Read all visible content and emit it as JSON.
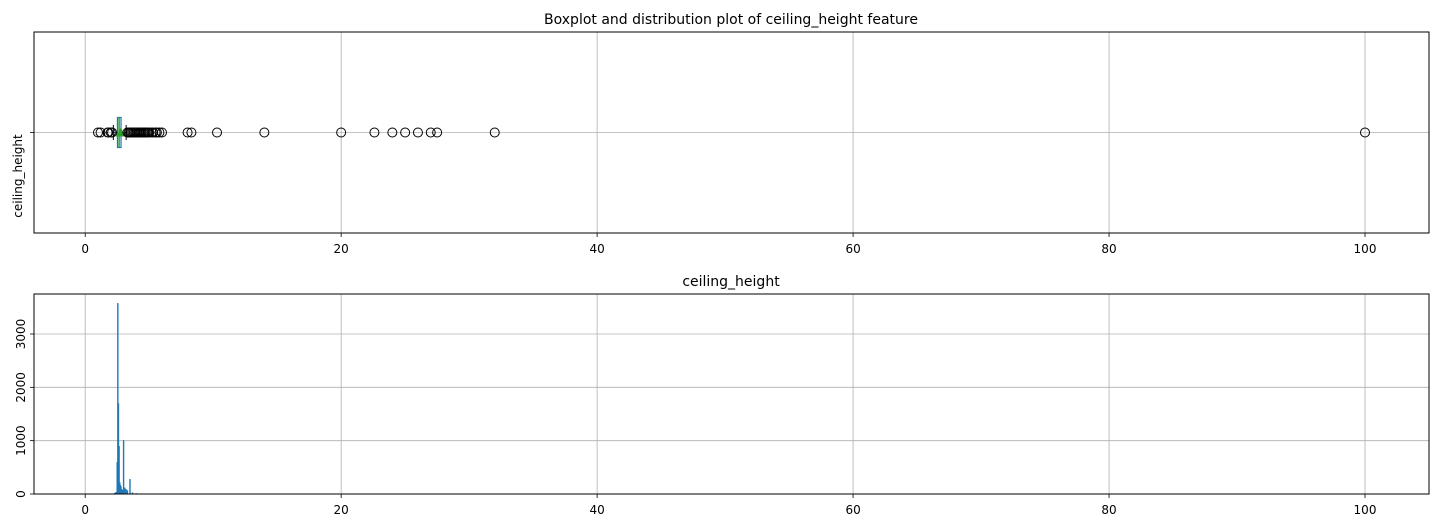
{
  "chart_data": [
    {
      "type": "boxplot",
      "title": "Boxplot and distribution plot of ceiling_height feature",
      "xlabel": "",
      "ylabel": "ceiling_height",
      "xlim": [
        -4,
        105
      ],
      "x_ticks": [
        0,
        20,
        40,
        60,
        80,
        100
      ],
      "grid": true,
      "box": {
        "q1": 2.52,
        "median": 2.65,
        "q3": 2.8,
        "mean": 2.77,
        "whisker_low": 2.2,
        "whisker_high": 3.2
      },
      "outliers": [
        1.0,
        1.2,
        1.75,
        1.8,
        2.0,
        2.1,
        3.3,
        3.4,
        3.5,
        3.6,
        3.7,
        3.8,
        3.9,
        4.0,
        4.1,
        4.2,
        4.3,
        4.4,
        4.5,
        4.6,
        4.7,
        4.8,
        4.9,
        5.0,
        5.2,
        5.3,
        5.5,
        5.6,
        5.8,
        6.0,
        8.0,
        8.3,
        10.3,
        14.0,
        20.0,
        22.6,
        24.0,
        25.0,
        26.0,
        27.0,
        27.5,
        32.0,
        100.0
      ]
    },
    {
      "type": "histogram",
      "title": "ceiling_height",
      "xlabel": "",
      "ylabel": "",
      "xlim": [
        -4,
        105
      ],
      "ylim": [
        0,
        3750
      ],
      "x_ticks": [
        0,
        20,
        40,
        60,
        80,
        100
      ],
      "y_ticks": [
        0,
        1000,
        2000,
        3000
      ],
      "grid": true,
      "bars": [
        {
          "x": 2.3,
          "count": 20
        },
        {
          "x": 2.4,
          "count": 35
        },
        {
          "x": 2.5,
          "count": 600
        },
        {
          "x": 2.55,
          "count": 3580
        },
        {
          "x": 2.6,
          "count": 1700
        },
        {
          "x": 2.65,
          "count": 900
        },
        {
          "x": 2.7,
          "count": 220
        },
        {
          "x": 2.75,
          "count": 170
        },
        {
          "x": 2.8,
          "count": 140
        },
        {
          "x": 2.85,
          "count": 90
        },
        {
          "x": 2.9,
          "count": 80
        },
        {
          "x": 3.0,
          "count": 1010
        },
        {
          "x": 3.1,
          "count": 120
        },
        {
          "x": 3.2,
          "count": 90
        },
        {
          "x": 3.3,
          "count": 70
        },
        {
          "x": 3.5,
          "count": 280
        },
        {
          "x": 3.7,
          "count": 30
        },
        {
          "x": 4.0,
          "count": 15
        }
      ]
    }
  ],
  "colors": {
    "box": "#1f77b4",
    "median": "#2ca02c",
    "mean": "#2ca02c",
    "hist": "#1f77b4",
    "grid": "#b0b0b0"
  }
}
